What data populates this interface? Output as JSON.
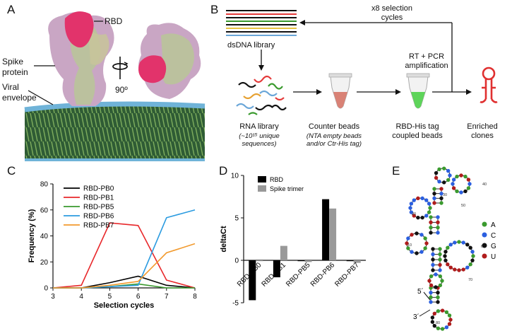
{
  "panelA": {
    "letter": "A",
    "labels": {
      "rbd": "RBD",
      "spike": "Spike\nprotein",
      "viral": "Viral\nenvelope",
      "rotation": "90º"
    }
  },
  "panelB": {
    "letter": "B",
    "dsdna": "dsDNA library",
    "cycles": "x8 selection\ncycles",
    "rtpcr": "RT + PCR\namplification",
    "rna_title": "RNA library",
    "rna_sub": "(~10¹⁵ unique\nsequences)",
    "counter_title": "Counter beads",
    "counter_sub": "(NTA empty beads\nand/or Ctr-His tag)",
    "rbdhis": "RBD-His tag\ncoupled beads",
    "enriched": "Enriched\nclones"
  },
  "panelC": {
    "letter": "C",
    "chart_data": {
      "type": "line",
      "x": [
        3,
        4,
        5,
        6,
        7,
        8
      ],
      "series": [
        {
          "name": "RBD-PB0",
          "color": "#000000",
          "values": [
            0,
            0,
            4,
            9,
            2,
            0
          ]
        },
        {
          "name": "RBD-PB1",
          "color": "#e8282b",
          "values": [
            0,
            2,
            50,
            48,
            6,
            0
          ]
        },
        {
          "name": "RBD-PB5",
          "color": "#3a9a2e",
          "values": [
            0,
            0,
            1,
            3,
            0,
            0
          ]
        },
        {
          "name": "RBD-PB6",
          "color": "#2b9be0",
          "values": [
            0,
            0,
            1,
            2,
            54,
            60
          ]
        },
        {
          "name": "RBD-PB7",
          "color": "#f29a2e",
          "values": [
            0,
            0,
            2,
            5,
            27,
            34
          ]
        }
      ],
      "xlabel": "Selection cycles",
      "ylabel": "Frequency (%)",
      "xticks": [
        "3",
        "4",
        "5",
        "6",
        "7",
        "8"
      ],
      "yticks": [
        "0",
        "20",
        "40",
        "60",
        "80"
      ],
      "xlim": [
        3,
        8
      ],
      "ylim": [
        0,
        80
      ]
    }
  },
  "panelD": {
    "letter": "D",
    "chart_data": {
      "type": "bar",
      "categories": [
        "RBD-PB0",
        "RBD-PB1",
        "RBD-PB5",
        "RBD-PB6",
        "RBD-PB7"
      ],
      "series": [
        {
          "name": "RBD",
          "color": "#000000",
          "values": [
            -4.7,
            -2.0,
            0.0,
            7.2,
            0.0
          ]
        },
        {
          "name": "Spike trimer",
          "color": "#999999",
          "values": [
            0.0,
            1.7,
            -0.2,
            6.1,
            -0.3
          ]
        }
      ],
      "ylabel": "deltaCt",
      "yticks": [
        "-5",
        "0",
        "5",
        "10"
      ],
      "ylim": [
        -5,
        10
      ]
    }
  },
  "panelE": {
    "letter": "E",
    "legend": [
      {
        "label": "A",
        "color": "#3a9a2e"
      },
      {
        "label": "C",
        "color": "#2b5fe0"
      },
      {
        "label": "G",
        "color": "#111111"
      },
      {
        "label": "U",
        "color": "#b01c1c"
      }
    ],
    "end5": "5´",
    "end3": "3´",
    "positions": [
      "10",
      "20",
      "30",
      "40",
      "50",
      "60",
      "70",
      "80"
    ]
  }
}
